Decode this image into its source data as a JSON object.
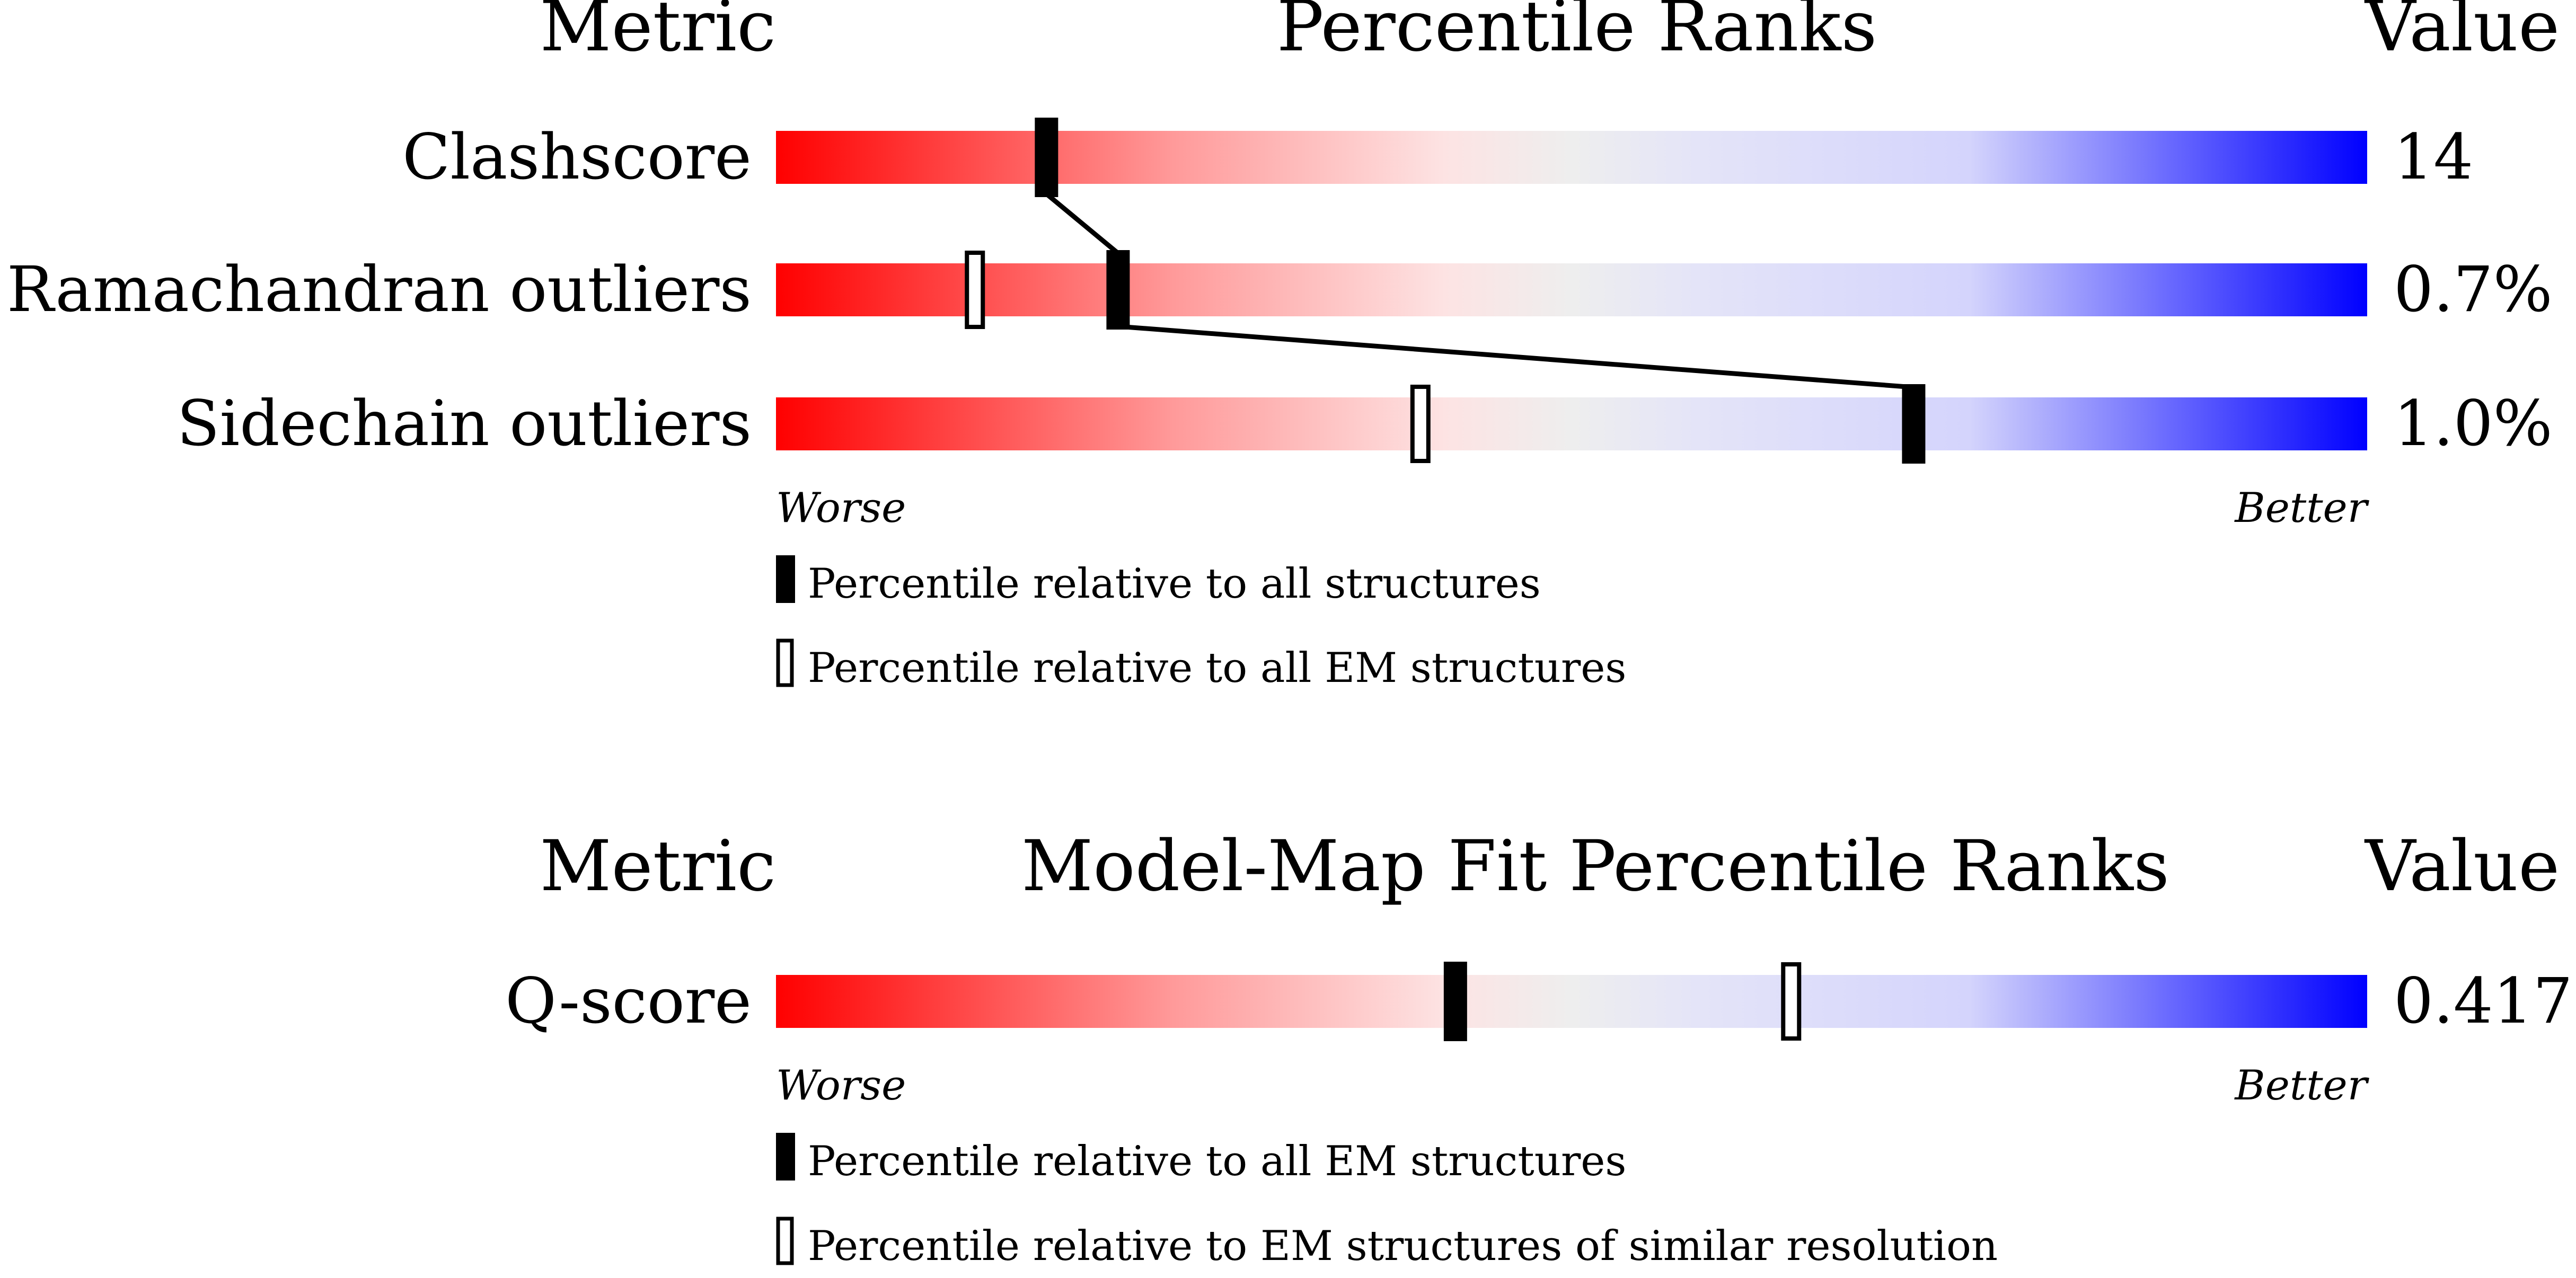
{
  "panels": [
    {
      "header": {
        "metric": "Metric",
        "title": "Percentile Ranks",
        "value": "Value"
      },
      "rows": [
        {
          "label": "Clashscore",
          "value": "14",
          "percentile_all": 17,
          "percentile_em": null
        },
        {
          "label": "Ramachandran outliers",
          "value": "0.7%",
          "percentile_all": 21.5,
          "percentile_em": 12.5
        },
        {
          "label": "Sidechain outliers",
          "value": "1.0%",
          "percentile_all": 71.5,
          "percentile_em": 40.5
        }
      ],
      "axis": {
        "worse": "Worse",
        "better": "Better"
      },
      "legend": [
        {
          "marker": "filled",
          "text": "Percentile relative to all structures"
        },
        {
          "marker": "hollow",
          "text": "Percentile relative to all EM structures"
        }
      ]
    },
    {
      "header": {
        "metric": "Metric",
        "title": "Model-Map Fit Percentile Ranks",
        "value": "Value"
      },
      "rows": [
        {
          "label": "Q-score",
          "value": "0.417",
          "percentile_all": 42.7,
          "percentile_em": 63.8
        }
      ],
      "axis": {
        "worse": "Worse",
        "better": "Better"
      },
      "legend": [
        {
          "marker": "filled",
          "text": "Percentile relative to all EM structures"
        },
        {
          "marker": "hollow",
          "text": "Percentile relative to EM structures of similar resolution"
        }
      ]
    }
  ],
  "chart_data": [
    {
      "type": "bar",
      "title": "Percentile Ranks",
      "categories": [
        "Clashscore",
        "Ramachandran outliers",
        "Sidechain outliers"
      ],
      "values": [
        "14",
        "0.7%",
        "1.0%"
      ],
      "xlim": [
        0,
        100
      ],
      "series": [
        {
          "name": "Percentile relative to all structures",
          "values": [
            17,
            21.5,
            71.5
          ]
        },
        {
          "name": "Percentile relative to all EM structures",
          "values": [
            null,
            12.5,
            40.5
          ]
        }
      ]
    },
    {
      "type": "bar",
      "title": "Model-Map Fit Percentile Ranks",
      "categories": [
        "Q-score"
      ],
      "values": [
        "0.417"
      ],
      "xlim": [
        0,
        100
      ],
      "series": [
        {
          "name": "Percentile relative to all EM structures",
          "values": [
            42.7
          ]
        },
        {
          "name": "Percentile relative to EM structures of similar resolution",
          "values": [
            63.8
          ]
        }
      ]
    }
  ],
  "colors": {
    "worse": "#ff0000",
    "mid": "#eeeeee",
    "better": "#0000ff",
    "marker": "#000000"
  }
}
